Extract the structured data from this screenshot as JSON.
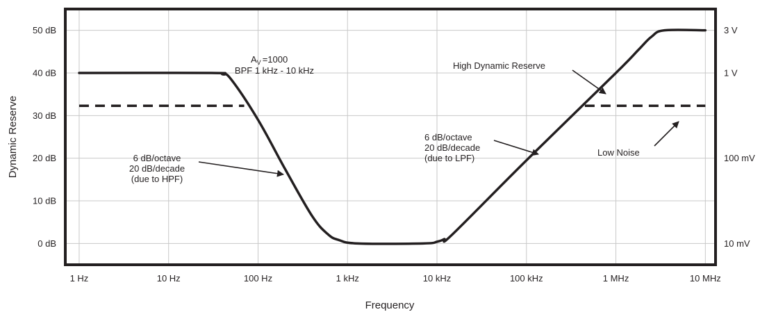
{
  "chart_data": {
    "type": "line",
    "xlabel": "Frequency",
    "ylabel": "Dynamic Reserve",
    "x_scale": "log",
    "x_ticks": [
      {
        "value": 1,
        "label": "1 Hz"
      },
      {
        "value": 10,
        "label": "10 Hz"
      },
      {
        "value": 100,
        "label": "100 Hz"
      },
      {
        "value": 1000,
        "label": "1 kHz"
      },
      {
        "value": 10000,
        "label": "10 kHz"
      },
      {
        "value": 100000,
        "label": "100 kHz"
      },
      {
        "value": 1000000,
        "label": "1 MHz"
      },
      {
        "value": 10000000,
        "label": "10 MHz"
      }
    ],
    "y_ticks": [
      {
        "value": 0,
        "label": "0 dB"
      },
      {
        "value": 10,
        "label": "10 dB"
      },
      {
        "value": 20,
        "label": "20 dB"
      },
      {
        "value": 30,
        "label": "30 dB"
      },
      {
        "value": 40,
        "label": "40 dB"
      },
      {
        "value": 50,
        "label": "50 dB"
      }
    ],
    "y2_ticks": [
      {
        "value": 0,
        "label": "10 mV"
      },
      {
        "value": 20,
        "label": "100 mV"
      },
      {
        "value": 40,
        "label": "1 V"
      },
      {
        "value": 50,
        "label": "3 V"
      }
    ],
    "xlim": [
      0.7,
      13000000
    ],
    "ylim": [
      -5,
      55
    ],
    "grid": true,
    "series": [
      {
        "name": "High Dynamic Reserve",
        "style": "solid",
        "x": [
          1,
          30,
          40,
          50,
          100,
          200,
          400,
          600,
          800,
          1300,
          7000,
          10000,
          12000,
          15000,
          100000,
          1000000,
          1800000,
          2500000,
          3500000,
          10000000
        ],
        "y": [
          40,
          40,
          39.7,
          38.5,
          29,
          17.5,
          6.5,
          2.2,
          0.8,
          0,
          0,
          0.4,
          1,
          2.2,
          19.5,
          40,
          45.5,
          48.5,
          50,
          50
        ]
      },
      {
        "name": "Low Noise",
        "style": "dashed",
        "segments": [
          {
            "x": [
              1,
              70
            ],
            "y": [
              32.3,
              32.3
            ]
          },
          {
            "x": [
              450000,
              10000000
            ],
            "y": [
              32.3,
              32.3
            ]
          }
        ]
      }
    ],
    "annotations": {
      "gain_main": "A",
      "gain_sub": "V",
      "gain_value": "=1000",
      "bpf": "BPF 1 kHz - 10 kHz",
      "high_dr": "High Dynamic Reserve",
      "low_noise": "Low Noise",
      "hpf_line1": "6 dB/octave",
      "hpf_line2": "20 dB/decade",
      "hpf_line3": "(due to HPF)",
      "lpf_line1": "6 dB/octave",
      "lpf_line2": "20 dB/decade",
      "lpf_line3": "(due to LPF)"
    }
  }
}
